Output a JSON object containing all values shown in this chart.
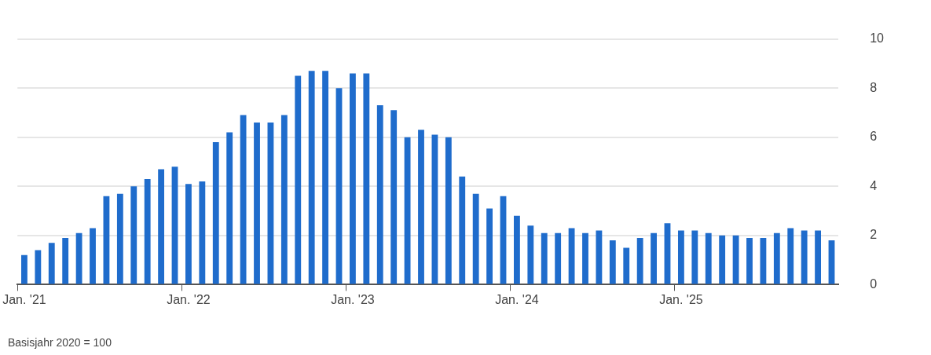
{
  "chart_data": {
    "type": "bar",
    "categories": [
      "Jan. '21",
      null,
      null,
      null,
      null,
      null,
      null,
      null,
      null,
      null,
      null,
      null,
      "Jan. '22",
      null,
      null,
      null,
      null,
      null,
      null,
      null,
      null,
      null,
      null,
      null,
      "Jan. '23",
      null,
      null,
      null,
      null,
      null,
      null,
      null,
      null,
      null,
      null,
      null,
      "Jan. '24",
      null,
      null,
      null,
      null,
      null,
      null,
      null,
      null,
      null,
      null,
      null,
      "Jan. '25",
      null,
      null,
      null,
      null,
      null,
      null,
      null,
      null,
      null,
      null,
      null
    ],
    "values": [
      1.2,
      1.4,
      1.7,
      1.9,
      2.1,
      2.3,
      3.6,
      3.7,
      4.0,
      4.3,
      4.7,
      4.8,
      4.1,
      4.2,
      5.8,
      6.2,
      6.9,
      6.6,
      6.6,
      6.9,
      8.5,
      8.7,
      8.7,
      8.0,
      8.6,
      8.6,
      7.3,
      7.1,
      6.0,
      6.3,
      6.1,
      6.0,
      4.4,
      3.7,
      3.1,
      3.6,
      2.8,
      2.4,
      2.1,
      2.1,
      2.3,
      2.1,
      2.2,
      1.8,
      1.5,
      1.9,
      2.1,
      2.5,
      2.2,
      2.2,
      2.1,
      2.0,
      2.0,
      1.9,
      1.9,
      2.1,
      2.3,
      2.2,
      2.2,
      1.8
    ],
    "color": "#1f6ccc",
    "ylim": [
      0,
      10
    ],
    "yticks": [
      0,
      2,
      4,
      6,
      8,
      10
    ],
    "grid": "y",
    "annotations": [
      "Basisjahr 2020 = 100"
    ]
  }
}
